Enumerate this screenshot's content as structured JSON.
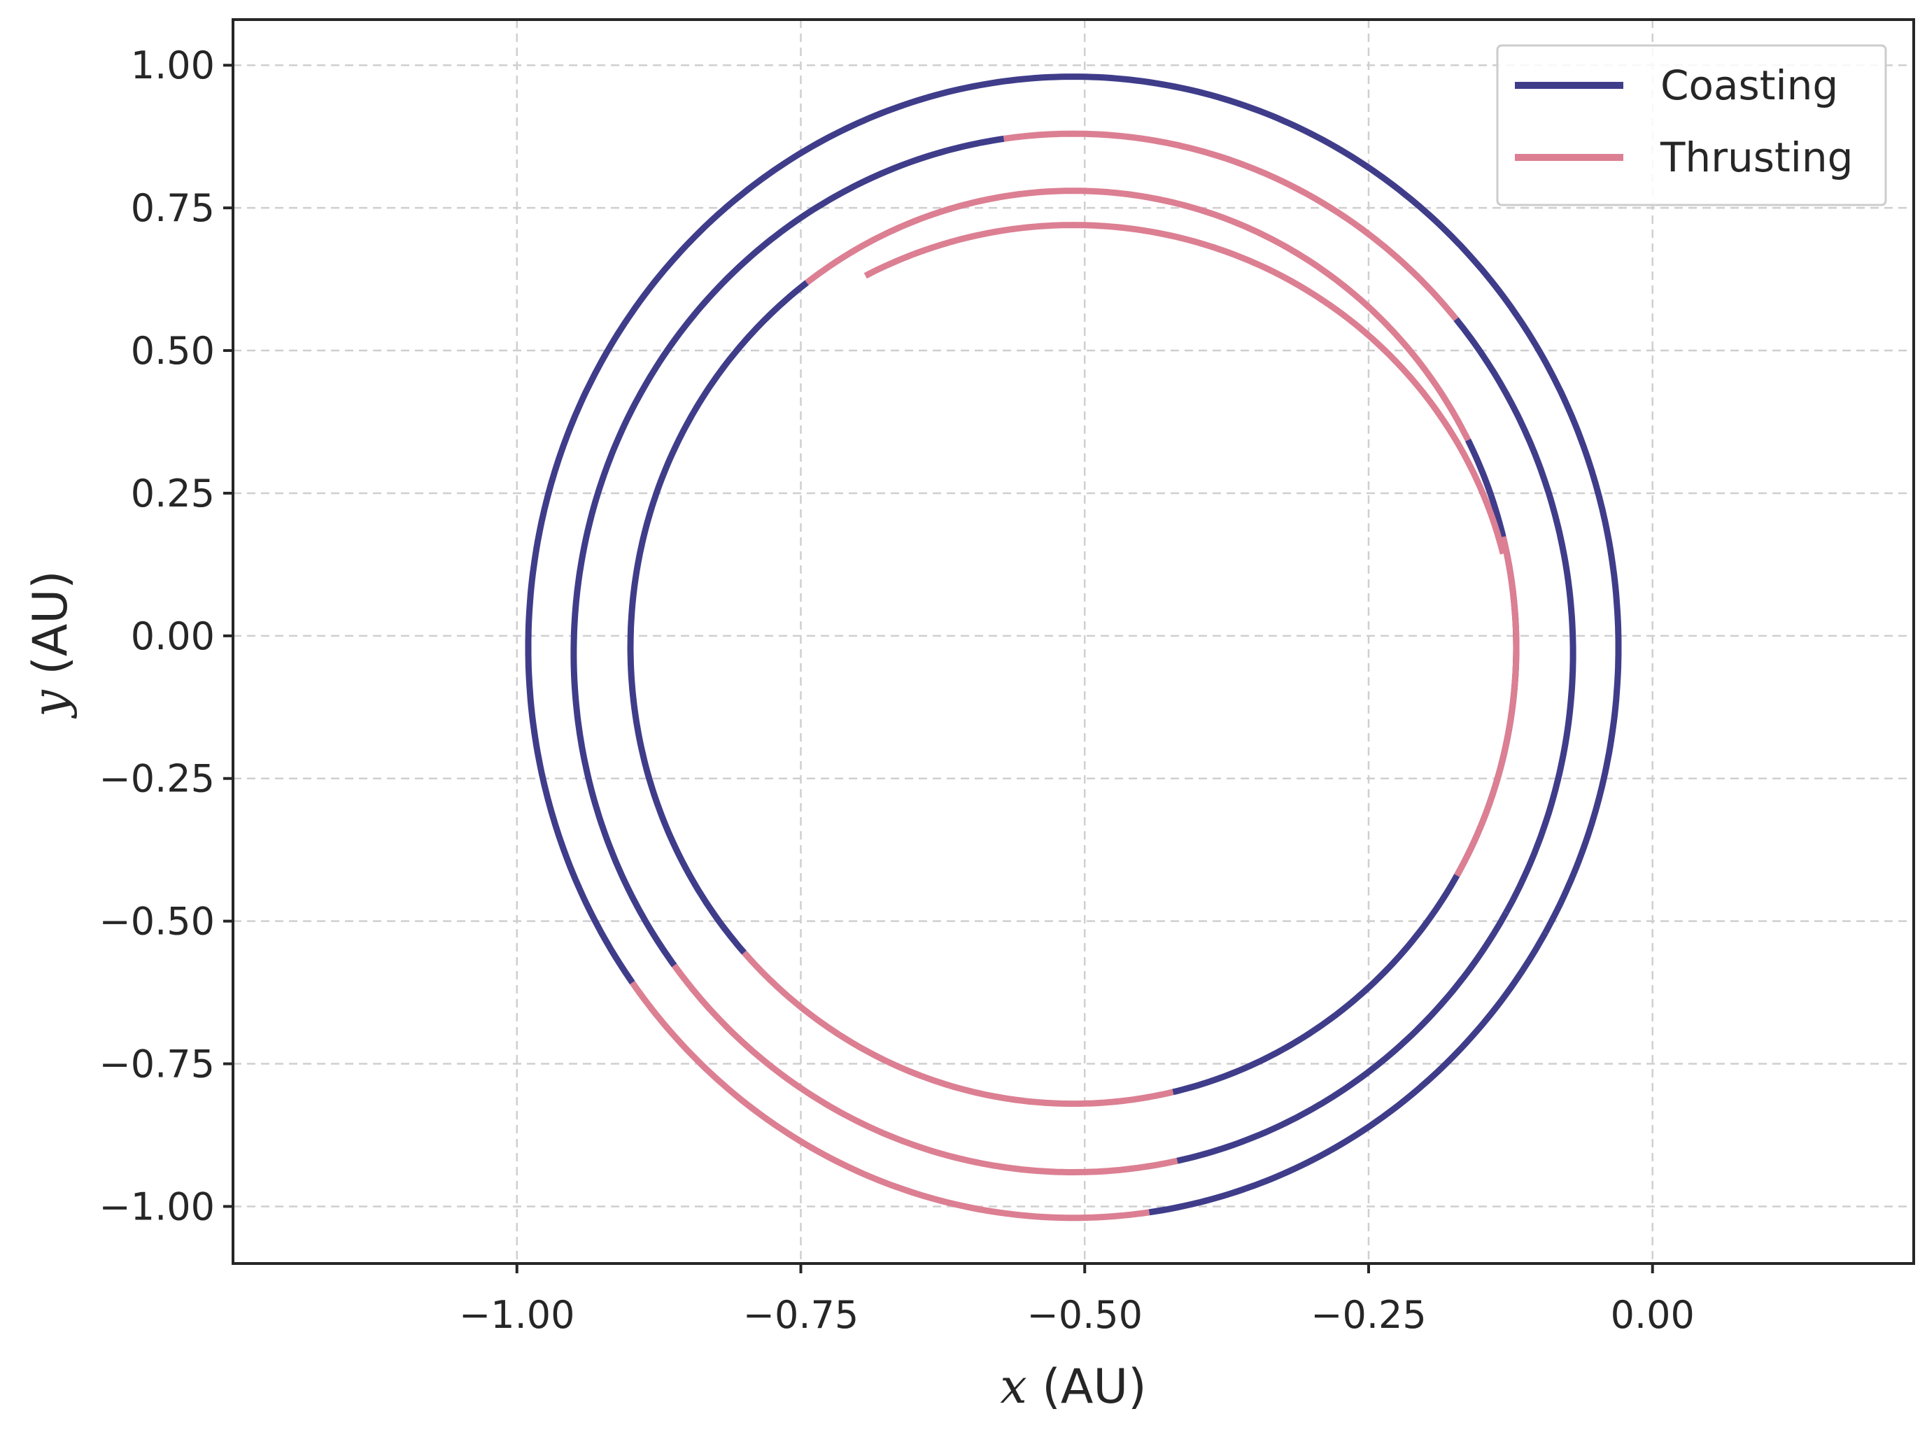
{
  "chart_data": {
    "type": "line",
    "xlabel_var": "x",
    "xlabel_unit": " (AU)",
    "ylabel_var": "y",
    "ylabel_unit": " (AU)",
    "xlim": [
      -1.25,
      0.23
    ],
    "ylim": [
      -1.1,
      1.08
    ],
    "x_ticks": [
      -1.0,
      -0.75,
      -0.5,
      -0.25,
      0.0
    ],
    "x_tick_labels": [
      "−1.00",
      "−0.75",
      "−0.50",
      "−0.25",
      "0.00"
    ],
    "y_ticks": [
      1.0,
      0.75,
      0.5,
      0.25,
      0.0,
      -0.25,
      -0.5,
      -0.75,
      -1.0
    ],
    "y_tick_labels": [
      "1.00",
      "0.75",
      "0.50",
      "0.25",
      "0.00",
      "−0.25",
      "−0.50",
      "−0.75",
      "−1.00"
    ],
    "grid": true,
    "legend_position": "top-right",
    "colors": {
      "coasting": "#3f3d8a",
      "thrusting": "#dc7f92",
      "axes": "#262626"
    },
    "series": [
      {
        "name": "Coasting",
        "key": "coasting"
      },
      {
        "name": "Thrusting",
        "key": "thrusting"
      }
    ],
    "trajectory": {
      "description_of_fields": "spiral segments in data units (center x, center y, radius x, radius y, start/end polar angle in degrees)",
      "segments": [
        {
          "series": "coasting",
          "center": [
            -0.51,
            -0.02
          ],
          "rx": 0.48,
          "ry": 1.0,
          "start_deg": -30,
          "end_deg": 90
        },
        {
          "series": "coasting",
          "center": [
            -0.51,
            -0.02
          ],
          "rx": 0.48,
          "ry": 1.0,
          "start_deg": 90,
          "end_deg": 216
        },
        {
          "series": "thrusting",
          "center": [
            -0.51,
            -0.02
          ],
          "rx": 0.48,
          "ry": 1.0,
          "start_deg": 216,
          "end_deg": 278
        },
        {
          "series": "coasting",
          "center": [
            -0.51,
            -0.02
          ],
          "rx": 0.48,
          "ry": 1.0,
          "start_deg": 278,
          "end_deg": 330
        },
        {
          "series": "coasting",
          "center": [
            -0.51,
            -0.03
          ],
          "rx": 0.44,
          "ry": 0.91,
          "start_deg": -30,
          "end_deg": 40
        },
        {
          "series": "thrusting",
          "center": [
            -0.51,
            -0.03
          ],
          "rx": 0.44,
          "ry": 0.91,
          "start_deg": 40,
          "end_deg": 98
        },
        {
          "series": "coasting",
          "center": [
            -0.51,
            -0.03
          ],
          "rx": 0.44,
          "ry": 0.91,
          "start_deg": 98,
          "end_deg": 217
        },
        {
          "series": "thrusting",
          "center": [
            -0.51,
            -0.03
          ],
          "rx": 0.44,
          "ry": 0.91,
          "start_deg": 217,
          "end_deg": 282
        },
        {
          "series": "coasting",
          "center": [
            -0.51,
            -0.03
          ],
          "rx": 0.44,
          "ry": 0.91,
          "start_deg": 282,
          "end_deg": 330
        },
        {
          "series": "coasting",
          "center": [
            -0.51,
            -0.02
          ],
          "rx": 0.39,
          "ry": 0.8,
          "start_deg": -30,
          "end_deg": 27
        },
        {
          "series": "thrusting",
          "center": [
            -0.51,
            -0.02
          ],
          "rx": 0.39,
          "ry": 0.8,
          "start_deg": 27,
          "end_deg": 127
        },
        {
          "series": "coasting",
          "center": [
            -0.51,
            -0.02
          ],
          "rx": 0.39,
          "ry": 0.8,
          "start_deg": 127,
          "end_deg": 222
        },
        {
          "series": "thrusting",
          "center": [
            -0.51,
            -0.02
          ],
          "rx": 0.39,
          "ry": 0.8,
          "start_deg": 222,
          "end_deg": 283
        },
        {
          "series": "coasting",
          "center": [
            -0.51,
            -0.02
          ],
          "rx": 0.39,
          "ry": 0.8,
          "start_deg": 283,
          "end_deg": 330
        },
        {
          "series": "thrusting",
          "center": [
            -0.51,
            -0.02
          ],
          "rx": 0.39,
          "ry": 0.8,
          "start_deg": 330,
          "end_deg": 374
        },
        {
          "series": "thrusting",
          "center": [
            -0.51,
            -0.04
          ],
          "rx": 0.39,
          "ry": 0.76,
          "start_deg": 14,
          "end_deg": 118
        }
      ]
    }
  }
}
